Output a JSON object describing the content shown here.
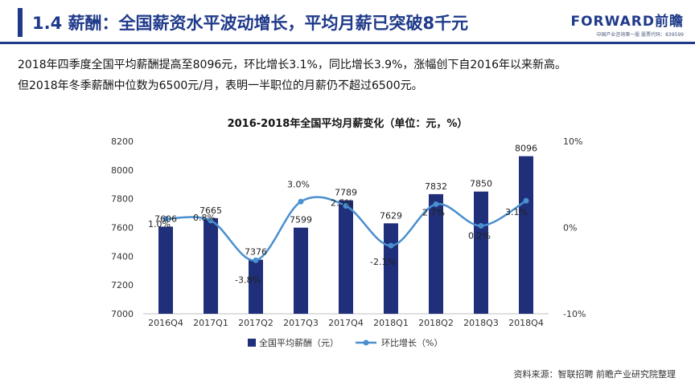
{
  "header": {
    "title": "1.4 薪酬：全国薪资水平波动增长，平均月薪已突破8千元",
    "brand_name": "FORWARD前瞻",
    "brand_sub": "中国产业咨询第一股  股票代码：839599"
  },
  "intro": {
    "line1": "2018年四季度全国平均薪酬提高至8096元，环比增长3.1%，同比增长3.9%，涨幅创下自2016年以来新高。",
    "line2": "但2018年冬季薪酬中位数为6500元/月，表明一半职位的月薪仍不超过6500元。"
  },
  "source": "资料来源：智联招聘 前瞻产业研究院整理",
  "colors": {
    "brand": "#1f3a8a",
    "bar": "#1f2f7a",
    "line": "#4a8fcf"
  },
  "chart_data": {
    "type": "bar",
    "title": "2016-2018年全国平均月薪变化（单位：元，%）",
    "categories": [
      "2016Q4",
      "2017Q1",
      "2017Q2",
      "2017Q3",
      "2017Q4",
      "2018Q1",
      "2018Q2",
      "2018Q3",
      "2018Q4"
    ],
    "series": [
      {
        "name": "全国平均薪酬（元）",
        "type": "bar",
        "axis": "left",
        "values": [
          7606,
          7665,
          7376,
          7599,
          7789,
          7629,
          7832,
          7850,
          8096
        ],
        "labels": [
          "7606",
          "7665",
          "7376",
          "7599",
          "7789",
          "7629",
          "7832",
          "7850",
          "8096"
        ]
      },
      {
        "name": "环比增长（%）",
        "type": "line",
        "axis": "right",
        "values": [
          1.0,
          0.8,
          -3.8,
          3.0,
          2.5,
          -2.1,
          2.7,
          0.2,
          3.1
        ],
        "labels": [
          "1.0%",
          "0.8%",
          "-3.8%",
          "3.0%",
          "2.5%",
          "-2.1%",
          "2.7%",
          "0.2%",
          "3.1%"
        ]
      }
    ],
    "left_axis": {
      "min": 7000,
      "max": 8200,
      "ticks": [
        "7000",
        "7200",
        "7400",
        "7600",
        "7800",
        "8000",
        "8200"
      ]
    },
    "right_axis": {
      "min": -10,
      "max": 10,
      "ticks": [
        "10%",
        "0%",
        "-10%"
      ]
    },
    "legend": "bottom",
    "grid": false
  }
}
